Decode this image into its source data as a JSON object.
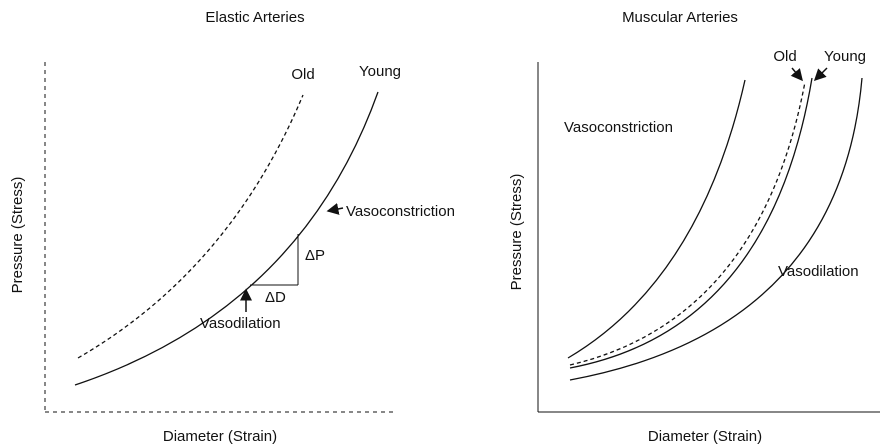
{
  "left": {
    "title": "Elastic Arteries",
    "y_label": "Pressure (Stress)",
    "x_label": "Diameter (Strain)",
    "old": "Old",
    "young": "Young",
    "delta_p": "ΔP",
    "delta_d": "ΔD",
    "vasodilation": "Vasodilation",
    "vasoconstriction": "Vasoconstriction"
  },
  "right": {
    "title": "Muscular Arteries",
    "y_label": "Pressure (Stress)",
    "x_label": "Diameter (Strain)",
    "old": "Old",
    "young": "Young",
    "vasoconstriction": "Vasoconstriction",
    "vasodilation": "Vasodilation"
  }
}
